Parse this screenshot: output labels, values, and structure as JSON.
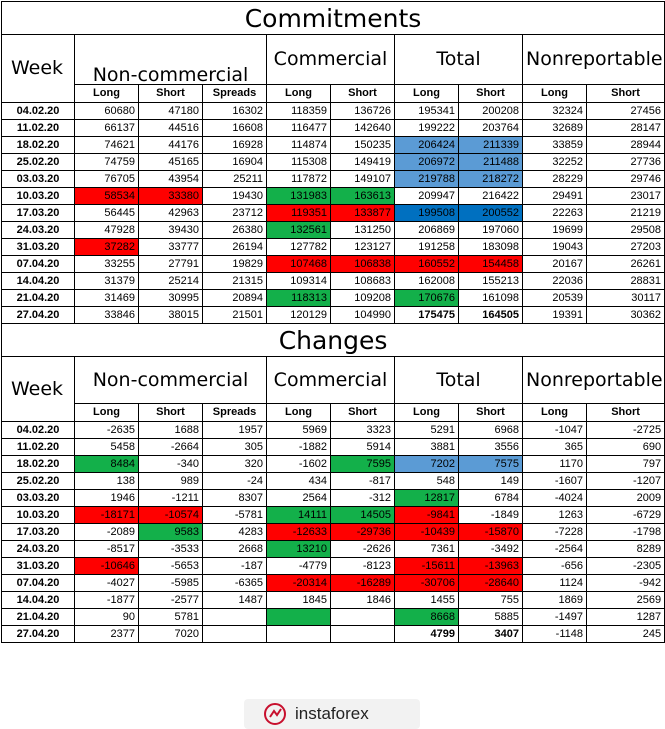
{
  "commitments": {
    "title": "Commitments",
    "week_label": "Week",
    "groups": {
      "noncommercial": "Non-commercial",
      "commercial": "Commercial",
      "total": "Total",
      "nonreportable": "Nonreportable positions"
    },
    "subheaders": [
      "Long",
      "Short",
      "Spreads",
      "Long",
      "Short",
      "Long",
      "Short",
      "Long",
      "Short"
    ],
    "rows": [
      {
        "date": "04.02.20",
        "v": [
          "60680",
          "47180",
          "16302",
          "118359",
          "136726",
          "195341",
          "200208",
          "32324",
          "27456"
        ],
        "c": [
          "",
          "",
          "",
          "",
          "",
          "",
          "",
          "",
          ""
        ]
      },
      {
        "date": "11.02.20",
        "v": [
          "66137",
          "44516",
          "16608",
          "116477",
          "142640",
          "199222",
          "203764",
          "32689",
          "28147"
        ],
        "c": [
          "",
          "",
          "",
          "",
          "",
          "",
          "",
          "",
          ""
        ]
      },
      {
        "date": "18.02.20",
        "v": [
          "74621",
          "44176",
          "16928",
          "114874",
          "150235",
          "206424",
          "211339",
          "33859",
          "28944"
        ],
        "c": [
          "",
          "",
          "",
          "",
          "",
          "blue",
          "blue",
          "",
          ""
        ]
      },
      {
        "date": "25.02.20",
        "v": [
          "74759",
          "45165",
          "16904",
          "115308",
          "149419",
          "206972",
          "211488",
          "32252",
          "27736"
        ],
        "c": [
          "",
          "",
          "",
          "",
          "",
          "blue",
          "blue",
          "",
          ""
        ]
      },
      {
        "date": "03.03.20",
        "v": [
          "76705",
          "43954",
          "25211",
          "117872",
          "149107",
          "219788",
          "218272",
          "28229",
          "29746"
        ],
        "c": [
          "",
          "",
          "",
          "",
          "",
          "blue",
          "blue",
          "",
          ""
        ]
      },
      {
        "date": "10.03.20",
        "v": [
          "58534",
          "33380",
          "19430",
          "131983",
          "163613",
          "209947",
          "216422",
          "29491",
          "23017"
        ],
        "c": [
          "red",
          "red",
          "",
          "green",
          "green",
          "",
          "",
          "",
          ""
        ]
      },
      {
        "date": "17.03.20",
        "v": [
          "56445",
          "42963",
          "23712",
          "119351",
          "133877",
          "199508",
          "200552",
          "22263",
          "21219"
        ],
        "c": [
          "",
          "",
          "",
          "red",
          "red",
          "dblue",
          "dblue",
          "",
          ""
        ]
      },
      {
        "date": "24.03.20",
        "v": [
          "47928",
          "39430",
          "26380",
          "132561",
          "131250",
          "206869",
          "197060",
          "19699",
          "29508"
        ],
        "c": [
          "",
          "",
          "",
          "green",
          "",
          "",
          "",
          "",
          ""
        ]
      },
      {
        "date": "31.03.20",
        "v": [
          "37282",
          "33777",
          "26194",
          "127782",
          "123127",
          "191258",
          "183098",
          "19043",
          "27203"
        ],
        "c": [
          "red",
          "",
          "",
          "",
          "",
          "",
          "",
          "",
          ""
        ]
      },
      {
        "date": "07.04.20",
        "v": [
          "33255",
          "27791",
          "19829",
          "107468",
          "106838",
          "160552",
          "154458",
          "20167",
          "26261"
        ],
        "c": [
          "",
          "",
          "",
          "red",
          "red",
          "red",
          "red",
          "",
          ""
        ]
      },
      {
        "date": "14.04.20",
        "v": [
          "31379",
          "25214",
          "21315",
          "109314",
          "108683",
          "162008",
          "155213",
          "22036",
          "28831"
        ],
        "c": [
          "",
          "",
          "",
          "",
          "",
          "",
          "",
          "",
          ""
        ]
      },
      {
        "date": "21.04.20",
        "v": [
          "31469",
          "30995",
          "20894",
          "118313",
          "109208",
          "170676",
          "161098",
          "20539",
          "30117"
        ],
        "c": [
          "",
          "",
          "",
          "green",
          "",
          "green",
          "",
          "",
          ""
        ]
      },
      {
        "date": "27.04.20",
        "v": [
          "33846",
          "38015",
          "21501",
          "120129",
          "104990",
          "175475",
          "164505",
          "19391",
          "30362"
        ],
        "c": [
          "",
          "",
          "",
          "",
          "",
          "",
          "",
          "",
          ""
        ],
        "bold": [
          5,
          6
        ]
      }
    ]
  },
  "changes": {
    "title": "Changes",
    "week_label": "Week",
    "groups": {
      "noncommercial": "Non-commercial",
      "commercial": "Commercial",
      "total": "Total",
      "nonreportable": "Nonreportable positions"
    },
    "subheaders": [
      "Long",
      "Short",
      "Spreads",
      "Long",
      "Short",
      "Long",
      "Short",
      "Long",
      "Short"
    ],
    "rows": [
      {
        "date": "04.02.20",
        "v": [
          "-2635",
          "1688",
          "1957",
          "5969",
          "3323",
          "5291",
          "6968",
          "-1047",
          "-2725"
        ],
        "c": [
          "",
          "",
          "",
          "",
          "",
          "",
          "",
          "",
          ""
        ]
      },
      {
        "date": "11.02.20",
        "v": [
          "5458",
          "-2664",
          "305",
          "-1882",
          "5914",
          "3881",
          "3556",
          "365",
          "690"
        ],
        "c": [
          "",
          "",
          "",
          "",
          "",
          "",
          "",
          "",
          ""
        ]
      },
      {
        "date": "18.02.20",
        "v": [
          "8484",
          "-340",
          "320",
          "-1602",
          "7595",
          "7202",
          "7575",
          "1170",
          "797"
        ],
        "c": [
          "green",
          "",
          "",
          "",
          "green",
          "blue",
          "blue",
          "",
          ""
        ]
      },
      {
        "date": "25.02.20",
        "v": [
          "138",
          "989",
          "-24",
          "434",
          "-817",
          "548",
          "149",
          "-1607",
          "-1207"
        ],
        "c": [
          "",
          "",
          "",
          "",
          "",
          "",
          "",
          "",
          ""
        ]
      },
      {
        "date": "03.03.20",
        "v": [
          "1946",
          "-1211",
          "8307",
          "2564",
          "-312",
          "12817",
          "6784",
          "-4024",
          "2009"
        ],
        "c": [
          "",
          "",
          "",
          "",
          "",
          "green",
          "",
          "",
          ""
        ]
      },
      {
        "date": "10.03.20",
        "v": [
          "-18171",
          "-10574",
          "-5781",
          "14111",
          "14505",
          "-9841",
          "-1849",
          "1263",
          "-6729"
        ],
        "c": [
          "red",
          "red",
          "",
          "green",
          "green",
          "red",
          "",
          "",
          ""
        ]
      },
      {
        "date": "17.03.20",
        "v": [
          "-2089",
          "9583",
          "4283",
          "-12633",
          "-29736",
          "-10439",
          "-15870",
          "-7228",
          "-1798"
        ],
        "c": [
          "",
          "green",
          "",
          "red",
          "red",
          "red",
          "red",
          "",
          ""
        ]
      },
      {
        "date": "24.03.20",
        "v": [
          "-8517",
          "-3533",
          "2668",
          "13210",
          "-2626",
          "7361",
          "-3492",
          "-2564",
          "8289"
        ],
        "c": [
          "",
          "",
          "",
          "green",
          "",
          "",
          "",
          "",
          ""
        ]
      },
      {
        "date": "31.03.20",
        "v": [
          "-10646",
          "-5653",
          "-187",
          "-4779",
          "-8123",
          "-15611",
          "-13963",
          "-656",
          "-2305"
        ],
        "c": [
          "red",
          "",
          "",
          "",
          "",
          "red",
          "red",
          "",
          ""
        ]
      },
      {
        "date": "07.04.20",
        "v": [
          "-4027",
          "-5985",
          "-6365",
          "-20314",
          "-16289",
          "-30706",
          "-28640",
          "1124",
          "-942"
        ],
        "c": [
          "",
          "",
          "",
          "red",
          "red",
          "red",
          "red",
          "",
          ""
        ]
      },
      {
        "date": "14.04.20",
        "v": [
          "-1877",
          "-2577",
          "1487",
          "1845",
          "1846",
          "1455",
          "755",
          "1869",
          "2569"
        ],
        "c": [
          "",
          "",
          "",
          "",
          "",
          "",
          "",
          "",
          ""
        ]
      },
      {
        "date": "21.04.20",
        "v": [
          "90",
          "5781",
          "",
          "",
          "",
          "8668",
          "5885",
          "-1497",
          "1287"
        ],
        "c": [
          "",
          "",
          "",
          "green",
          "",
          "green",
          "",
          "",
          ""
        ]
      },
      {
        "date": "27.04.20",
        "v": [
          "2377",
          "7020",
          "",
          "",
          "",
          "4799",
          "3407",
          "-1148",
          "245"
        ],
        "c": [
          "",
          "",
          "",
          "",
          "",
          "",
          "",
          "",
          ""
        ],
        "bold": [
          5,
          6
        ]
      }
    ]
  },
  "watermark": {
    "text": "instaforex",
    "icon": "instaforex-logo-icon"
  }
}
